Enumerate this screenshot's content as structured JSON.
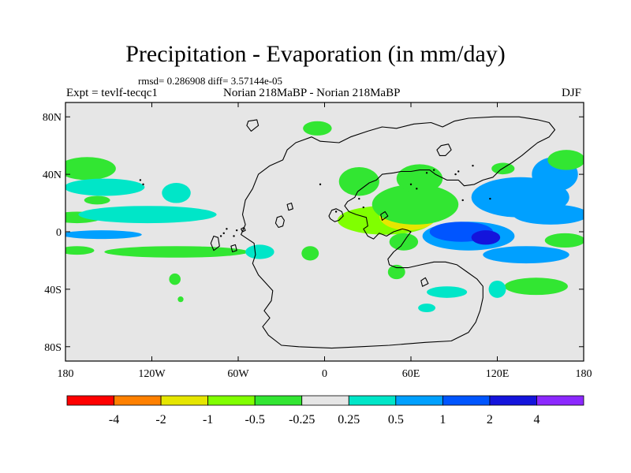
{
  "figure": {
    "title": "Precipitation - Evaporation (in mm/day)",
    "stats": "rmsd= 0.286908 diff= 3.57144e-05",
    "experiment": "Expt = tevlf-tecqc1",
    "comparison": "Norian 218MaBP - Norian 218MaBP",
    "season": "DJF"
  },
  "map": {
    "projection": "cylindrical equidistant",
    "lon_range": [
      -180,
      180
    ],
    "lat_range": [
      -90,
      90
    ],
    "background_color": "#e6e6e6",
    "lon_ticks": [
      {
        "value": -180,
        "label": "180"
      },
      {
        "value": -120,
        "label": "120W"
      },
      {
        "value": -60,
        "label": "60W"
      },
      {
        "value": 0,
        "label": "0"
      },
      {
        "value": 60,
        "label": "60E"
      },
      {
        "value": 120,
        "label": "120E"
      },
      {
        "value": 180,
        "label": "180"
      }
    ],
    "lat_ticks": [
      {
        "value": 80,
        "label": "80N"
      },
      {
        "value": 40,
        "label": "40N"
      },
      {
        "value": 0,
        "label": "0"
      },
      {
        "value": -40,
        "label": "40S"
      },
      {
        "value": -80,
        "label": "80S"
      }
    ],
    "coastline": [
      [
        -26,
        57
      ],
      [
        -29,
        50
      ],
      [
        -38,
        46
      ],
      [
        -46,
        40
      ],
      [
        -50,
        30
      ],
      [
        -55,
        22
      ],
      [
        -57,
        12
      ],
      [
        -55,
        5
      ],
      [
        -58,
        -2
      ],
      [
        -49,
        -8
      ],
      [
        -48,
        -16
      ],
      [
        -50,
        -22
      ],
      [
        -46,
        -30
      ],
      [
        -36,
        -41
      ],
      [
        -37,
        -48
      ],
      [
        -42,
        -55
      ],
      [
        -38,
        -60
      ],
      [
        -43,
        -66
      ],
      [
        -39,
        -72
      ],
      [
        -30,
        -79
      ],
      [
        -18,
        -80
      ],
      [
        5,
        -81
      ],
      [
        25,
        -80
      ],
      [
        45,
        -79
      ],
      [
        70,
        -77
      ],
      [
        88,
        -76
      ],
      [
        100,
        -70
      ],
      [
        105,
        -63
      ],
      [
        108,
        -55
      ],
      [
        110,
        -46
      ],
      [
        110,
        -38
      ],
      [
        106,
        -33
      ],
      [
        99,
        -28
      ],
      [
        92,
        -23
      ],
      [
        84,
        -21
      ],
      [
        76,
        -21
      ],
      [
        67,
        -23
      ],
      [
        58,
        -25
      ],
      [
        50,
        -25
      ],
      [
        45,
        -23
      ],
      [
        44,
        -19
      ],
      [
        48,
        -14
      ],
      [
        53,
        -10
      ],
      [
        57,
        -4
      ],
      [
        60,
        0
      ],
      [
        58,
        1
      ],
      [
        54,
        2
      ],
      [
        48,
        0
      ],
      [
        43,
        -3
      ],
      [
        38,
        -1
      ],
      [
        34,
        -5
      ],
      [
        30,
        -3
      ],
      [
        27,
        2
      ],
      [
        30,
        4
      ],
      [
        29,
        10
      ],
      [
        22,
        12
      ],
      [
        17,
        14
      ],
      [
        14,
        18
      ],
      [
        16,
        21
      ],
      [
        21,
        24
      ],
      [
        23,
        28
      ],
      [
        27,
        31
      ],
      [
        31,
        34
      ],
      [
        36,
        36
      ],
      [
        40,
        40
      ],
      [
        48,
        41
      ],
      [
        53,
        42
      ],
      [
        60,
        42
      ],
      [
        66,
        43
      ],
      [
        73,
        43
      ],
      [
        77,
        40
      ],
      [
        85,
        36
      ],
      [
        93,
        36
      ],
      [
        97,
        32
      ],
      [
        104,
        33
      ],
      [
        110,
        36
      ],
      [
        117,
        38
      ],
      [
        122,
        43
      ],
      [
        130,
        48
      ],
      [
        137,
        53
      ],
      [
        143,
        58
      ],
      [
        148,
        62
      ],
      [
        156,
        66
      ],
      [
        160,
        71
      ],
      [
        156,
        76
      ],
      [
        148,
        78
      ],
      [
        135,
        80
      ],
      [
        118,
        80
      ],
      [
        100,
        79
      ],
      [
        90,
        77
      ],
      [
        82,
        73
      ],
      [
        74,
        76
      ],
      [
        62,
        75
      ],
      [
        50,
        72
      ],
      [
        40,
        73
      ],
      [
        30,
        70
      ],
      [
        18,
        66
      ],
      [
        10,
        62
      ],
      [
        -3,
        63
      ],
      [
        -9,
        66
      ],
      [
        -20,
        62
      ],
      [
        -26,
        57
      ]
    ],
    "islands": [
      [
        [
          4,
          9
        ],
        [
          3,
          11
        ],
        [
          5,
          15
        ],
        [
          8,
          16
        ],
        [
          12,
          14
        ],
        [
          13,
          11
        ],
        [
          10,
          8
        ],
        [
          7,
          7
        ],
        [
          4,
          9
        ]
      ],
      [
        [
          -32,
          3
        ],
        [
          -34,
          6
        ],
        [
          -33,
          10
        ],
        [
          -30,
          11
        ],
        [
          -28,
          8
        ],
        [
          -29,
          4
        ],
        [
          -32,
          3
        ]
      ],
      [
        [
          -25,
          15
        ],
        [
          -26,
          19
        ],
        [
          -23,
          20
        ],
        [
          -22,
          16
        ],
        [
          -25,
          15
        ]
      ],
      [
        [
          -77,
          -13
        ],
        [
          -79,
          -8
        ],
        [
          -77,
          -3
        ],
        [
          -74,
          -4
        ],
        [
          -73,
          -10
        ],
        [
          -77,
          -13
        ]
      ],
      [
        [
          -64,
          -14
        ],
        [
          -65,
          -10
        ],
        [
          -62,
          -9
        ],
        [
          -61,
          -13
        ],
        [
          -64,
          -14
        ]
      ],
      [
        [
          -51,
          70
        ],
        [
          -54,
          74
        ],
        [
          -53,
          77
        ],
        [
          -47,
          78
        ],
        [
          -46,
          74
        ],
        [
          -51,
          70
        ]
      ],
      [
        [
          80,
          53
        ],
        [
          78,
          57
        ],
        [
          81,
          60
        ],
        [
          86,
          61
        ],
        [
          88,
          57
        ],
        [
          84,
          53
        ],
        [
          80,
          53
        ]
      ],
      [
        [
          40,
          8
        ],
        [
          39,
          12
        ],
        [
          42,
          14
        ],
        [
          44,
          11
        ],
        [
          40,
          8
        ]
      ],
      [
        [
          68,
          -38
        ],
        [
          67,
          -34
        ],
        [
          70,
          -32
        ],
        [
          72,
          -36
        ],
        [
          68,
          -38
        ]
      ],
      [
        [
          -57,
          0
        ],
        [
          -58,
          2
        ],
        [
          -56,
          3
        ],
        [
          -55,
          1
        ],
        [
          -57,
          0
        ]
      ]
    ],
    "dots": [
      [
        -128,
        36
      ],
      [
        -126,
        33
      ],
      [
        -70,
        -1
      ],
      [
        -68,
        2
      ],
      [
        -72,
        -3
      ],
      [
        -63,
        -3
      ],
      [
        -61,
        1
      ],
      [
        -3,
        33
      ],
      [
        8,
        14
      ],
      [
        24,
        23
      ],
      [
        27,
        17
      ],
      [
        60,
        33
      ],
      [
        71,
        41
      ],
      [
        76,
        43
      ],
      [
        91,
        40
      ],
      [
        93,
        42
      ],
      [
        115,
        23
      ],
      [
        103,
        46
      ],
      [
        96,
        22
      ],
      [
        64,
        30
      ]
    ]
  },
  "field": {
    "variable": "Precipitation - Evaporation",
    "units": "mm/day",
    "levels": [
      "-4",
      "-2",
      "-1",
      "-0.5",
      "-0.25",
      "0.25",
      "0.5",
      "1",
      "2",
      "4"
    ],
    "colors": [
      "#ff0000",
      "#ff8000",
      "#e6e600",
      "#80ff00",
      "#32e632",
      "#e6e6e6",
      "#00e6c8",
      "#00a0ff",
      "#0055ff",
      "#1414dc",
      "#8c28ff"
    ],
    "anomalies": [
      {
        "lon": -165,
        "lat": 44,
        "rx": 20,
        "ry": 8,
        "value": -0.4
      },
      {
        "lon": -172,
        "lat": 10,
        "rx": 17,
        "ry": 4,
        "value": -0.35
      },
      {
        "lon": -158,
        "lat": 22,
        "rx": 9,
        "ry": 3,
        "value": -0.3
      },
      {
        "lon": -153,
        "lat": 31,
        "rx": 28,
        "ry": 6,
        "value": 0.3
      },
      {
        "lon": -123,
        "lat": 12,
        "rx": 48,
        "ry": 6,
        "value": 0.3
      },
      {
        "lon": -103,
        "lat": 27,
        "rx": 10,
        "ry": 7,
        "value": 0.35
      },
      {
        "lon": -103,
        "lat": -14,
        "rx": 50,
        "ry": 4,
        "value": -0.3
      },
      {
        "lon": -155,
        "lat": -2,
        "rx": 28,
        "ry": 3,
        "value": 0.55
      },
      {
        "lon": -172,
        "lat": -13,
        "rx": 12,
        "ry": 3,
        "value": -0.3
      },
      {
        "lon": -45,
        "lat": -14,
        "rx": 10,
        "ry": 5,
        "value": 0.3
      },
      {
        "lon": -10,
        "lat": -15,
        "rx": 6,
        "ry": 5,
        "value": -0.3
      },
      {
        "lon": -5,
        "lat": 72,
        "rx": 10,
        "ry": 5,
        "value": -0.3
      },
      {
        "lon": 24,
        "lat": 35,
        "rx": 14,
        "ry": 10,
        "value": -0.4
      },
      {
        "lon": 42,
        "lat": 8,
        "rx": 33,
        "ry": 10,
        "value": -0.5
      },
      {
        "lon": 58,
        "lat": 11,
        "rx": 20,
        "ry": 10,
        "value": -1.2
      },
      {
        "lon": 63,
        "lat": 19,
        "rx": 30,
        "ry": 14,
        "value": -0.4
      },
      {
        "lon": 66,
        "lat": 37,
        "rx": 16,
        "ry": 10,
        "value": -0.35
      },
      {
        "lon": 55,
        "lat": -7,
        "rx": 10,
        "ry": 6,
        "value": -0.3
      },
      {
        "lon": 50,
        "lat": -28,
        "rx": 6,
        "ry": 5,
        "value": -0.3
      },
      {
        "lon": 100,
        "lat": -3,
        "rx": 32,
        "ry": 10,
        "value": 0.6
      },
      {
        "lon": 95,
        "lat": 0,
        "rx": 22,
        "ry": 7,
        "value": 1.2
      },
      {
        "lon": 112,
        "lat": -4,
        "rx": 10,
        "ry": 5,
        "value": 2.2
      },
      {
        "lon": 136,
        "lat": 24,
        "rx": 34,
        "ry": 14,
        "value": 0.6
      },
      {
        "lon": 157,
        "lat": 12,
        "rx": 26,
        "ry": 7,
        "value": 0.6
      },
      {
        "lon": 160,
        "lat": 40,
        "rx": 16,
        "ry": 12,
        "value": 0.6
      },
      {
        "lon": 168,
        "lat": 50,
        "rx": 13,
        "ry": 7,
        "value": -0.35
      },
      {
        "lon": 140,
        "lat": -16,
        "rx": 30,
        "ry": 6,
        "value": 0.6
      },
      {
        "lon": 147,
        "lat": -38,
        "rx": 22,
        "ry": 6,
        "value": -0.35
      },
      {
        "lon": 120,
        "lat": -40,
        "rx": 6,
        "ry": 6,
        "value": 0.3
      },
      {
        "lon": 85,
        "lat": -42,
        "rx": 14,
        "ry": 4,
        "value": 0.3
      },
      {
        "lon": 167,
        "lat": -6,
        "rx": 14,
        "ry": 5,
        "value": -0.3
      },
      {
        "lon": 124,
        "lat": 44,
        "rx": 8,
        "ry": 4,
        "value": -0.3
      },
      {
        "lon": 71,
        "lat": -53,
        "rx": 6,
        "ry": 3,
        "value": 0.3
      },
      {
        "lon": -104,
        "lat": -33,
        "rx": 4,
        "ry": 4,
        "value": -0.3
      },
      {
        "lon": -100,
        "lat": -47,
        "rx": 2,
        "ry": 2,
        "value": -0.3
      }
    ]
  }
}
